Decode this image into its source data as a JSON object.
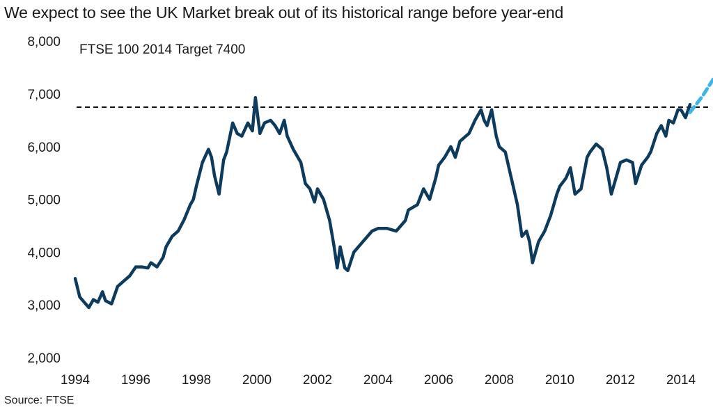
{
  "chart_data": {
    "type": "line",
    "title": "We expect to see the UK Market break out of its historical range before year-end",
    "subtitle": "FTSE 100  2014 Target 7400",
    "source": "Source: FTSE",
    "xlabel": "",
    "ylabel": "",
    "ylim": [
      2000,
      8000
    ],
    "xlim": [
      1994,
      2015.2
    ],
    "y_ticks": [
      2000,
      3000,
      4000,
      5000,
      6000,
      7000,
      8000
    ],
    "y_tick_labels": [
      "2,000",
      "3,000",
      "4,000",
      "5,000",
      "6,000",
      "7,000",
      "8,000"
    ],
    "x_ticks": [
      1994,
      1996,
      1998,
      2000,
      2002,
      2004,
      2006,
      2008,
      2010,
      2012,
      2014
    ],
    "x_tick_labels": [
      "1994",
      "1996",
      "1998",
      "2000",
      "2002",
      "2004",
      "2006",
      "2008",
      "2010",
      "2012",
      "2014"
    ],
    "grid": false,
    "colors": {
      "series": "#0d3b5e",
      "forecast": "#3db6e6",
      "reference": "#111111"
    },
    "reference_line": {
      "y": 6750,
      "style": "dashed"
    },
    "series": [
      {
        "name": "FTSE 100",
        "style": "solid",
        "x": [
          1994.0,
          1994.15,
          1994.3,
          1994.45,
          1994.6,
          1994.75,
          1994.9,
          1995.0,
          1995.2,
          1995.4,
          1995.6,
          1995.8,
          1996.0,
          1996.2,
          1996.4,
          1996.5,
          1996.7,
          1996.9,
          1997.0,
          1997.2,
          1997.4,
          1997.6,
          1997.8,
          1997.9,
          1998.0,
          1998.2,
          1998.4,
          1998.5,
          1998.6,
          1998.75,
          1998.9,
          1999.0,
          1999.2,
          1999.35,
          1999.5,
          1999.7,
          1999.85,
          1999.95,
          2000.1,
          2000.25,
          2000.45,
          2000.6,
          2000.75,
          2000.9,
          2001.0,
          2001.2,
          2001.45,
          2001.6,
          2001.75,
          2001.9,
          2002.0,
          2002.2,
          2002.4,
          2002.55,
          2002.65,
          2002.75,
          2002.9,
          2003.0,
          2003.2,
          2003.5,
          2003.8,
          2004.0,
          2004.3,
          2004.6,
          2004.9,
          2005.0,
          2005.3,
          2005.5,
          2005.7,
          2005.9,
          2006.0,
          2006.2,
          2006.4,
          2006.55,
          2006.7,
          2006.9,
          2007.0,
          2007.2,
          2007.4,
          2007.5,
          2007.6,
          2007.75,
          2007.9,
          2008.0,
          2008.2,
          2008.4,
          2008.6,
          2008.75,
          2008.9,
          2009.0,
          2009.1,
          2009.3,
          2009.5,
          2009.7,
          2009.9,
          2010.0,
          2010.2,
          2010.35,
          2010.5,
          2010.7,
          2010.9,
          2011.0,
          2011.2,
          2011.4,
          2011.55,
          2011.7,
          2011.9,
          2012.0,
          2012.2,
          2012.4,
          2012.5,
          2012.7,
          2012.9,
          2013.0,
          2013.2,
          2013.35,
          2013.5,
          2013.6,
          2013.75,
          2013.9,
          2014.0,
          2014.15,
          2014.3
        ],
        "y": [
          3500,
          3150,
          3050,
          2950,
          3100,
          3050,
          3250,
          3080,
          3020,
          3350,
          3450,
          3550,
          3720,
          3720,
          3700,
          3800,
          3720,
          3900,
          4100,
          4300,
          4400,
          4620,
          4900,
          5000,
          5250,
          5700,
          5950,
          5800,
          5450,
          5100,
          5750,
          5900,
          6450,
          6250,
          6200,
          6450,
          6300,
          6930,
          6250,
          6450,
          6500,
          6400,
          6250,
          6500,
          6200,
          5950,
          5700,
          5300,
          5200,
          4950,
          5200,
          5000,
          4600,
          4100,
          3700,
          4100,
          3700,
          3650,
          4000,
          4200,
          4400,
          4450,
          4450,
          4400,
          4600,
          4800,
          4900,
          5200,
          5000,
          5400,
          5650,
          5800,
          6000,
          5800,
          6100,
          6200,
          6250,
          6500,
          6700,
          6500,
          6400,
          6700,
          6200,
          6000,
          5900,
          5400,
          4900,
          4300,
          4400,
          4200,
          3800,
          4200,
          4400,
          4700,
          5100,
          5250,
          5400,
          5600,
          5100,
          5200,
          5800,
          5900,
          6050,
          5950,
          5600,
          5100,
          5500,
          5700,
          5750,
          5700,
          5300,
          5650,
          5800,
          5900,
          6250,
          6400,
          6200,
          6500,
          6450,
          6700,
          6700,
          6550,
          6800
        ]
      },
      {
        "name": "2014 Target 7400",
        "style": "dashed",
        "x": [
          2014.3,
          2014.7,
          2015.2
        ],
        "y": [
          6650,
          6950,
          7400
        ]
      }
    ]
  }
}
